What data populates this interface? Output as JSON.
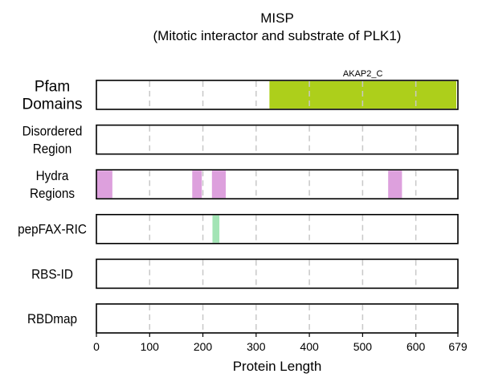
{
  "chart_data": {
    "type": "protein-domain-track",
    "title": "MISP",
    "subtitle": "(Mitotic interactor and substrate of PLK1)",
    "xlabel": "Protein Length",
    "xlim": [
      0,
      679
    ],
    "xticks": [
      0,
      100,
      200,
      300,
      400,
      500,
      600,
      679
    ],
    "grid_x": [
      100,
      200,
      300,
      400,
      500,
      600
    ],
    "tracks": [
      {
        "label_lines": [
          "Pfam",
          "Domains"
        ],
        "features": [
          {
            "start": 325,
            "end": 676,
            "color": "#adcf1b",
            "label": "AKAP2_C"
          }
        ]
      },
      {
        "label_lines": [
          "Disordered",
          "Region"
        ],
        "features": []
      },
      {
        "label_lines": [
          "Hydra",
          "Regions"
        ],
        "features": [
          {
            "start": 0,
            "end": 30,
            "color": "#dda0dd"
          },
          {
            "start": 180,
            "end": 198,
            "color": "#dda0dd"
          },
          {
            "start": 217,
            "end": 243,
            "color": "#dda0dd"
          },
          {
            "start": 548,
            "end": 574,
            "color": "#dda0dd"
          }
        ]
      },
      {
        "label_lines": [
          "pepFAX-RIC"
        ],
        "features": [
          {
            "start": 218,
            "end": 231,
            "color": "#a3e4b5"
          }
        ]
      },
      {
        "label_lines": [
          "RBS-ID"
        ],
        "features": []
      },
      {
        "label_lines": [
          "RBDmap"
        ],
        "features": []
      }
    ]
  }
}
